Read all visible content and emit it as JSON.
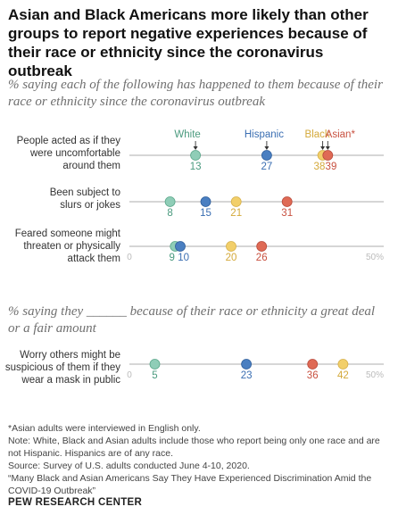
{
  "title": "Asian and Black Americans more likely than other groups to report negative experiences because of their race or ethnicity since the coronavirus outbreak",
  "subtitle_1": "% saying each of the following has happened to them because of their race or ethnicity since the coronavirus outbreak",
  "subtitle_2": "% saying they ______ because of their race or ethnicity a great deal or a fair amount",
  "axis": {
    "min": 0,
    "max": 50,
    "min_label": "0",
    "max_label": "50%"
  },
  "colors": {
    "White": "#8fcdb7",
    "Hispanic": "#4a7fc1",
    "Black": "#f2cf6a",
    "Asian": "#df6a55",
    "line": "#c8c8c8"
  },
  "chart_data": [
    {
      "type": "scatter",
      "title": "% saying each of the following has happened to them because of their race or ethnicity since the coronavirus outbreak",
      "categories": [
        [
          "People acted as if they",
          "were uncomfortable",
          "around them"
        ],
        [
          "Been subject to",
          "slurs or jokes"
        ],
        [
          "Feared someone might",
          "threaten or physically",
          "attack them"
        ]
      ],
      "series": [
        {
          "name": "White",
          "values": [
            13,
            8,
            9
          ]
        },
        {
          "name": "Hispanic",
          "values": [
            27,
            15,
            10
          ]
        },
        {
          "name": "Black",
          "values": [
            38,
            21,
            20
          ]
        },
        {
          "name": "Asian",
          "values": [
            39,
            31,
            26
          ]
        }
      ],
      "xlim": [
        0,
        50
      ]
    },
    {
      "type": "scatter",
      "title": "% saying they ______ because of their race or ethnicity a great deal or a fair amount",
      "categories": [
        [
          "Worry others might be",
          "suspicious of them if they",
          "wear a mask in public"
        ]
      ],
      "series": [
        {
          "name": "White",
          "values": [
            5
          ]
        },
        {
          "name": "Hispanic",
          "values": [
            23
          ]
        },
        {
          "name": "Black",
          "values": [
            42
          ]
        },
        {
          "name": "Asian",
          "values": [
            36
          ]
        }
      ],
      "xlim": [
        0,
        50
      ]
    }
  ],
  "notes": [
    "*Asian adults were interviewed in English only.",
    "Note: White, Black and Asian adults include those who report being only one race and are not Hispanic. Hispanics are of any race.",
    "Source: Survey of U.S. adults conducted June 4-10, 2020.",
    "“Many Black and Asian Americans Say They Have Experienced Discrimination Amid the COVID-19 Outbreak”"
  ],
  "brand": "PEW RESEARCH CENTER"
}
